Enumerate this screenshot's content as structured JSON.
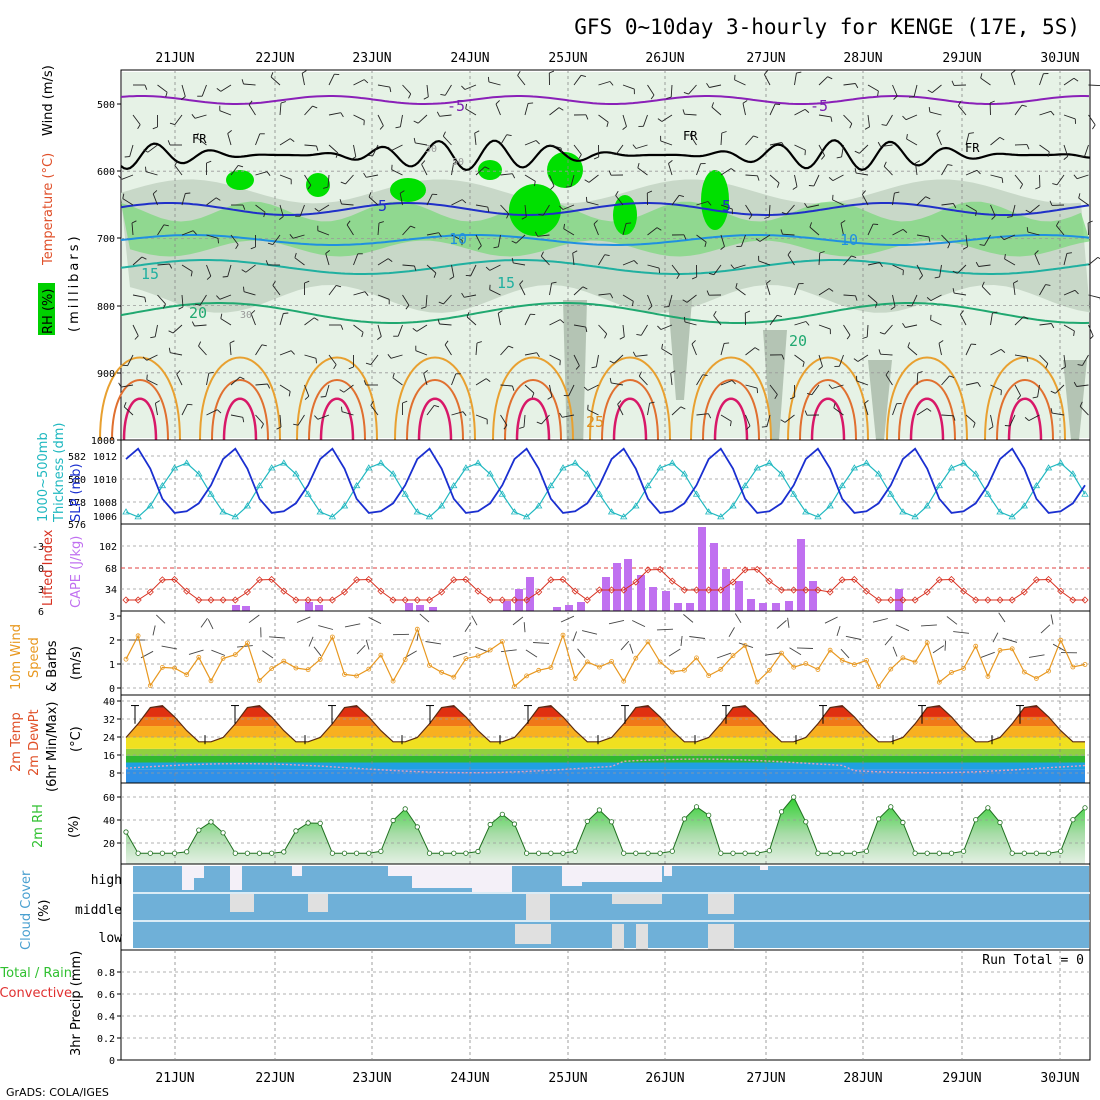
{
  "title": "GFS 0~10day 3-hourly for KENGE (17E, 5S)",
  "dates": [
    "21JUN",
    "22JUN",
    "23JUN",
    "24JUN",
    "25JUN",
    "26JUN",
    "27JUN",
    "28JUN",
    "29JUN",
    "30JUN"
  ],
  "credit": "GrADS: COLA/IGES",
  "colors": {
    "rh_light": "#e6f2e6",
    "rh_mid": "#c8d8c8",
    "rh_dark": "#b4c4b4",
    "rh_green1": "#7ed87e",
    "rh_green2": "#00e000",
    "slp": "#1a2fd0",
    "thickness": "#20b8c0",
    "lifted_index": "#d83020",
    "cape": "#c070f0",
    "wind10m": "#e89820",
    "dewpoint_band": "#3090e8",
    "rh2m": "#30c030",
    "cloud": "#6fb0d8",
    "cloud_gap": "#e0e0e0"
  },
  "panels": {
    "upper": {
      "left_labels": [
        "RH (%)",
        "Temperature (°C)",
        "Wind (m/s)"
      ],
      "ylabel": "(millibars)",
      "yticks": [
        "500",
        "600",
        "700",
        "800",
        "900",
        "1000"
      ],
      "contour_labels": {
        "freezing": "FR",
        "temps": [
          "-5",
          "5",
          "10",
          "15",
          "20",
          "25"
        ],
        "rh": [
          "30",
          "50",
          "30"
        ]
      }
    },
    "slp": {
      "left_labels": [
        "1000~500mb",
        "Thickness (dm)",
        "SLP (mb)"
      ],
      "left_ticks": [
        "582",
        "580",
        "578",
        "576"
      ],
      "right_ticks": [
        "1012",
        "1010",
        "1008",
        "1006"
      ]
    },
    "cape": {
      "left_labels": [
        "Lifted Index",
        "CAPE (J/kg)"
      ],
      "left_ticks": [
        "-3",
        "0",
        "3",
        "6"
      ],
      "right_ticks": [
        "102",
        "68",
        "34"
      ]
    },
    "wind10m": {
      "left_labels": [
        "10m Wind",
        "Speed",
        "& Barbs",
        "(m/s)"
      ],
      "ticks": [
        "3",
        "2",
        "1",
        "0"
      ]
    },
    "temp2m": {
      "left_labels": [
        "2m Temp",
        "2m DewPt",
        "(6hr Min/Max)",
        "(°C)"
      ],
      "ticks": [
        "40",
        "32",
        "24",
        "16",
        "8"
      ]
    },
    "rh2m": {
      "left_labels": [
        "2m RH",
        "(%)"
      ],
      "ticks": [
        "60",
        "40",
        "20"
      ]
    },
    "cloud": {
      "left_labels": [
        "Cloud Cover",
        "(%)"
      ],
      "levels": [
        "high",
        "middle",
        "low"
      ]
    },
    "precip": {
      "left_labels": [
        "Total / Rain",
        "Convective",
        "3hr Precip (mm)"
      ],
      "ticks": [
        "0.8",
        "0.6",
        "0.4",
        "0.2",
        "0"
      ],
      "run_total": "Run Total = 0"
    }
  },
  "chart_data": [
    {
      "type": "line",
      "name": "SLP & 1000~500mb thickness",
      "x": [
        "21JUN",
        "22JUN",
        "23JUN",
        "24JUN",
        "25JUN",
        "26JUN",
        "27JUN",
        "28JUN",
        "29JUN",
        "30JUN"
      ],
      "series": [
        {
          "name": "SLP (mb)",
          "values": [
            1008.0,
            1012.6,
            1007.0,
            1012.2,
            1006.4,
            1012.2,
            1006.6,
            1012.0,
            1006.5,
            1012.2
          ]
        },
        {
          "name": "Thickness (dm)",
          "values": [
            579.8,
            576.6,
            581.4,
            577.0,
            581.8,
            576.8,
            581.2,
            577.0,
            581.6,
            576.8
          ]
        }
      ],
      "ylim_left": [
        576,
        583
      ],
      "ylim_right": [
        1005,
        1013
      ]
    },
    {
      "type": "bar",
      "name": "CAPE (J/kg)",
      "categories": [
        "24JUN",
        "25JUN",
        "26JUN",
        "27JUN"
      ],
      "values": [
        20,
        70,
        130,
        95
      ],
      "ylim": [
        0,
        130
      ]
    },
    {
      "type": "line",
      "name": "10m Wind Speed (m/s)",
      "values": [
        1.6,
        2.3,
        0.1,
        1.0,
        1.3,
        1.1,
        2.3,
        0.4,
        1.3,
        1.4,
        2.2,
        0.5,
        1.6,
        2.0,
        1.1,
        0.8,
        1.2,
        2.5,
        0.9,
        1.0,
        1.4,
        1.8,
        0.3,
        1.2,
        2.9,
        1.5,
        1.3,
        0.8,
        1.6,
        1.4
      ],
      "ylim": [
        0,
        3
      ]
    },
    {
      "type": "area",
      "name": "2m Temp (°C)",
      "x": [
        "21JUN",
        "22JUN",
        "23JUN",
        "24JUN",
        "25JUN",
        "26JUN",
        "27JUN",
        "28JUN",
        "29JUN",
        "30JUN"
      ],
      "series": [
        {
          "name": "2m Temp daily max",
          "values": [
            34,
            37,
            37,
            37,
            37,
            37,
            37,
            37,
            37,
            37
          ]
        },
        {
          "name": "2m Temp daily min",
          "values": [
            22,
            22,
            22,
            22,
            22,
            22,
            22,
            22,
            22,
            21
          ]
        },
        {
          "name": "2m DewPt",
          "values": [
            10,
            11,
            12,
            13,
            13,
            14,
            15,
            14,
            12,
            13
          ]
        }
      ],
      "ylim": [
        6,
        40
      ]
    },
    {
      "type": "area",
      "name": "2m RH (%)",
      "x": [
        "21JUN",
        "22JUN",
        "23JUN",
        "24JUN",
        "25JUN",
        "26JUN",
        "27JUN",
        "28JUN",
        "29JUN",
        "30JUN"
      ],
      "series": [
        {
          "name": "2m RH daily max",
          "values": [
            47,
            46,
            59,
            54,
            58,
            61,
            70,
            61,
            60,
            60
          ]
        },
        {
          "name": "2m RH daily min",
          "values": [
            17,
            18,
            18,
            18,
            18,
            18,
            18,
            18,
            18,
            18
          ]
        }
      ],
      "ylim": [
        10,
        70
      ]
    },
    {
      "type": "bar",
      "name": "3hr Precip (mm)",
      "values": [
        0,
        0,
        0,
        0,
        0,
        0,
        0,
        0,
        0,
        0
      ],
      "ylim": [
        0,
        0.9
      ]
    }
  ]
}
